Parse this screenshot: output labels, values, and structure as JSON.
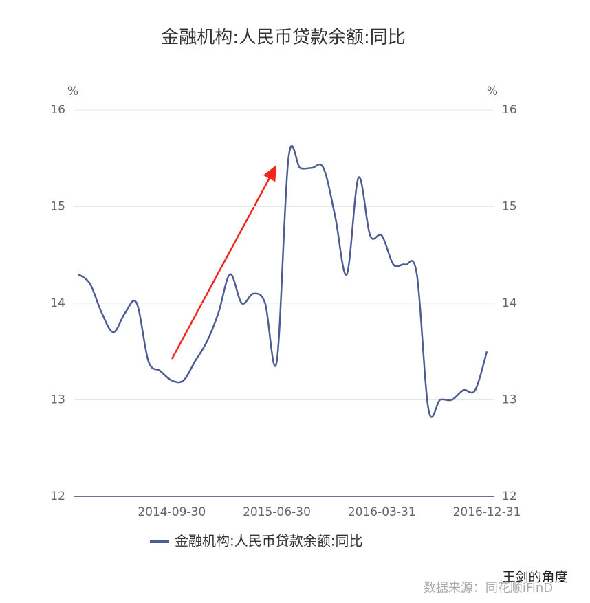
{
  "chart_data": {
    "type": "line",
    "title": "金融机构:人民币贷款余额:同比",
    "categories": [
      null,
      null,
      null,
      null,
      null,
      null,
      null,
      null,
      "2014-09-30",
      null,
      null,
      null,
      null,
      null,
      null,
      null,
      null,
      "2015-06-30",
      null,
      null,
      null,
      null,
      null,
      null,
      null,
      null,
      "2016-03-31",
      null,
      null,
      null,
      null,
      null,
      null,
      null,
      null,
      "2016-12-31"
    ],
    "series": [
      {
        "name": "金融机构:人民币贷款余额:同比",
        "color": "#4f5b93",
        "values": [
          14.3,
          14.2,
          13.9,
          13.7,
          13.9,
          14.0,
          13.4,
          13.3,
          13.2,
          13.2,
          13.4,
          13.6,
          13.9,
          14.3,
          14.0,
          14.1,
          14.0,
          13.4,
          15.5,
          15.4,
          15.4,
          15.4,
          14.9,
          14.3,
          15.3,
          14.7,
          14.7,
          14.4,
          14.4,
          14.3,
          12.9,
          13.0,
          13.0,
          13.1,
          13.1,
          13.5
        ]
      }
    ],
    "ylim": [
      12,
      16
    ],
    "yticks": [
      12,
      13,
      14,
      15,
      16
    ],
    "y2lim": [
      12,
      16
    ],
    "y2ticks": [
      12,
      13,
      14,
      15,
      16
    ],
    "y_unit": "%",
    "y2_unit": "%",
    "grid": true,
    "watermark": "王剑的角度",
    "source": "数据来源：同花顺iFinD"
  }
}
